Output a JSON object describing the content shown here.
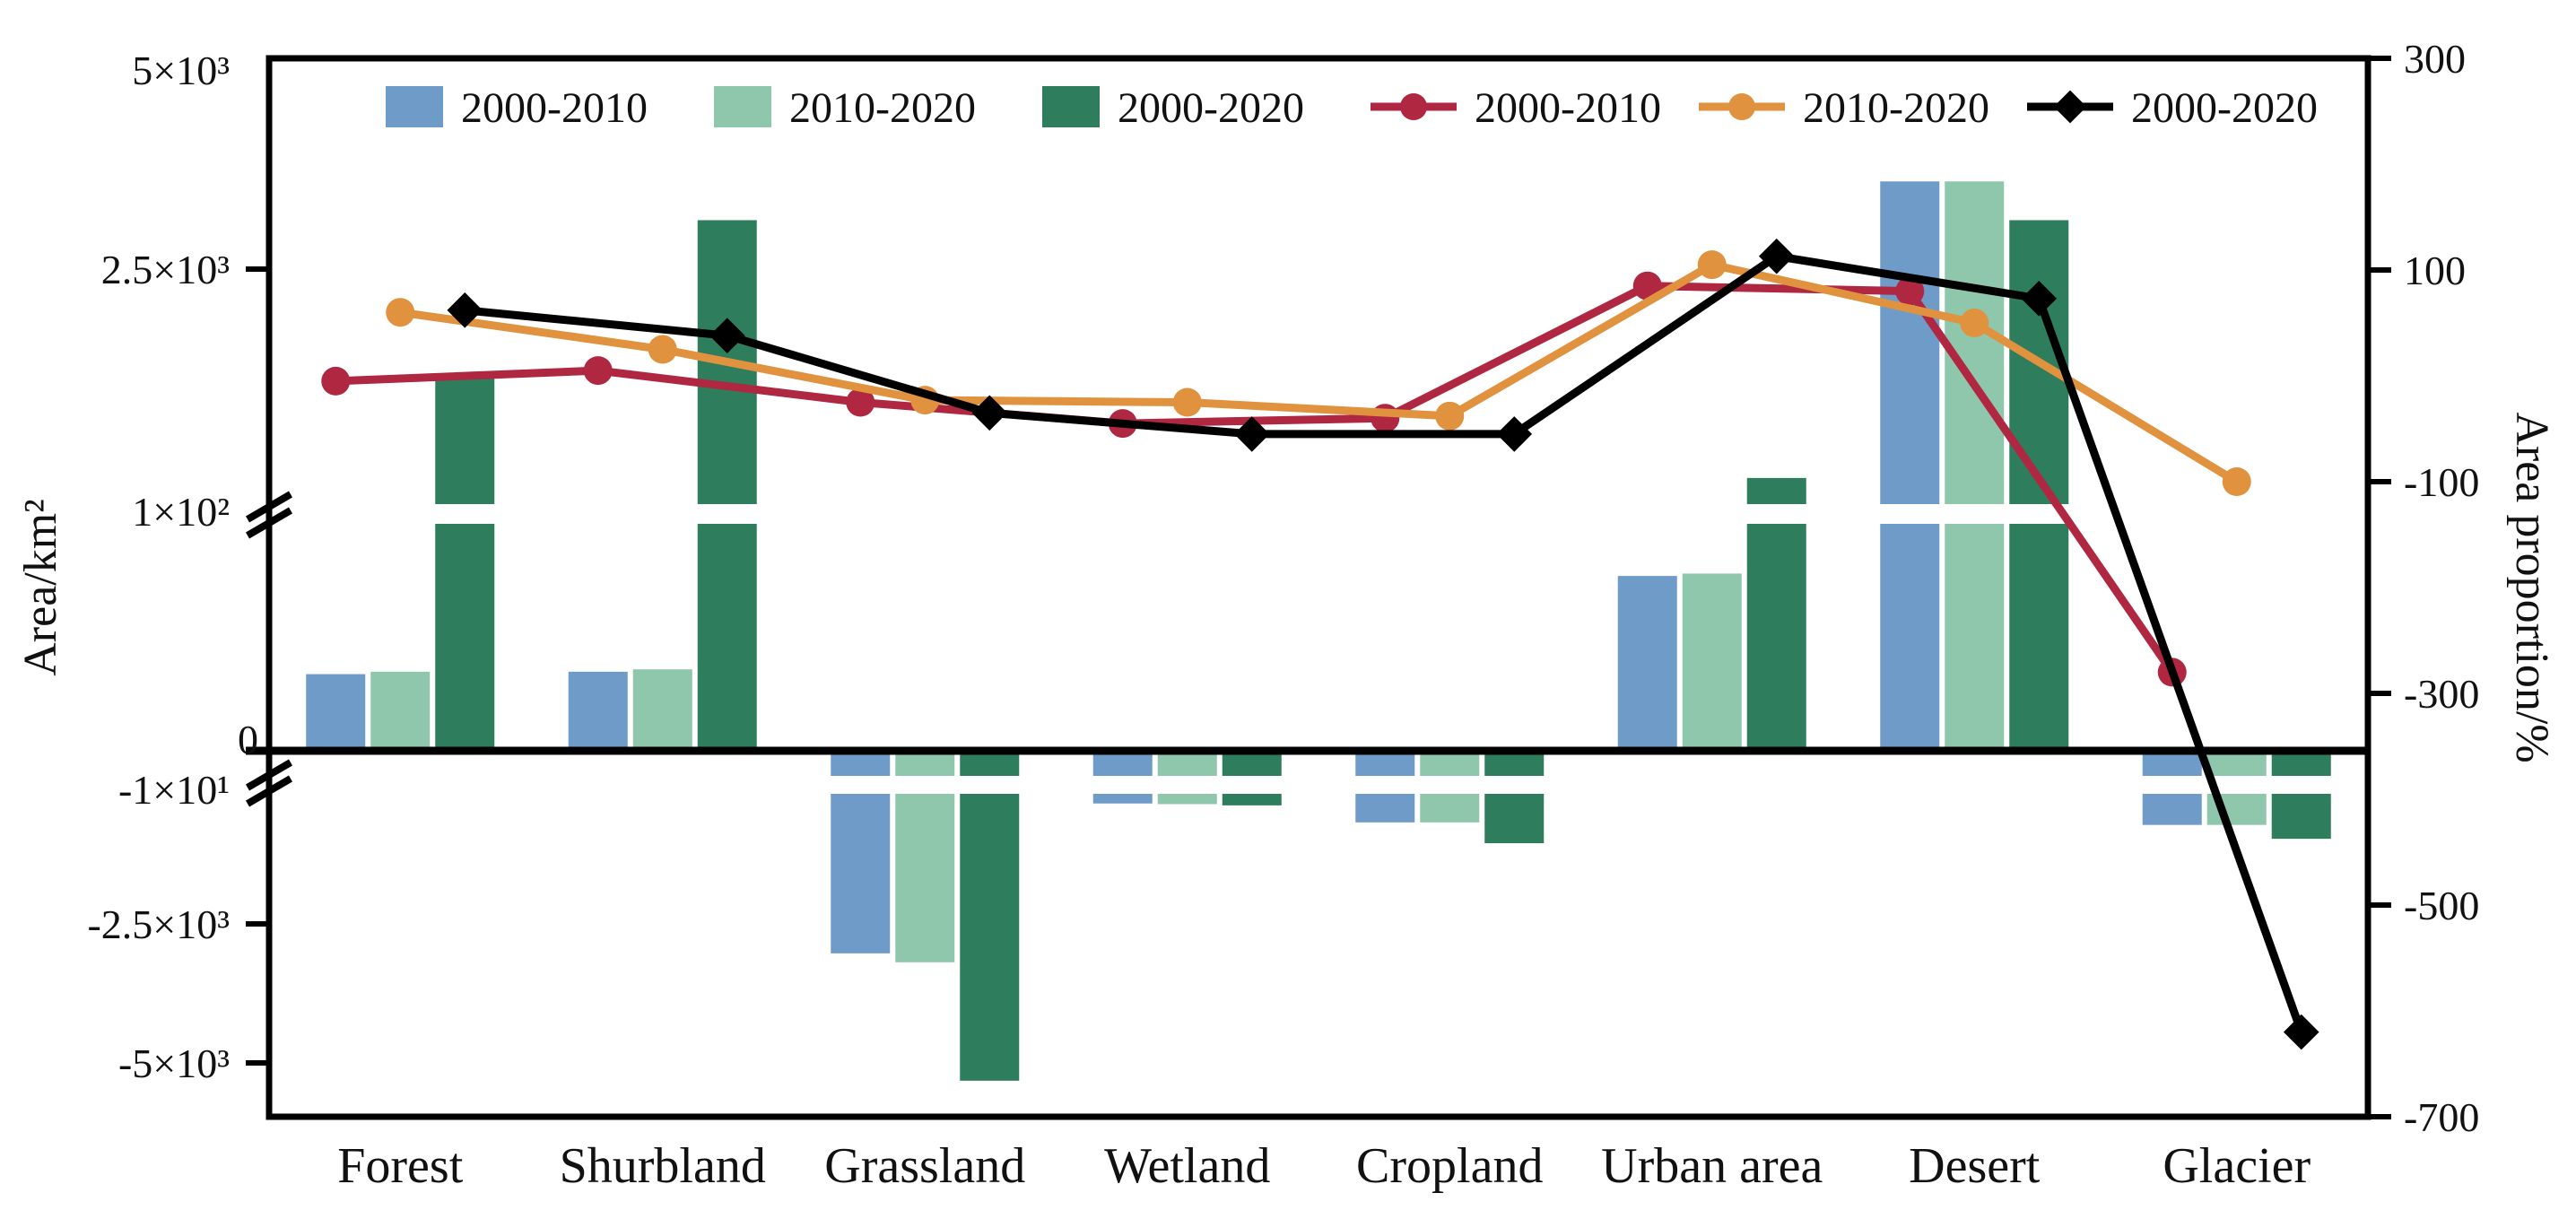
{
  "chart_data": {
    "type": "combo-bar-line",
    "title": "",
    "categories": [
      "Forest",
      "Shurbland",
      "Grassland",
      "Wetland",
      "Cropland",
      "Urban area",
      "Desert",
      "Glacier"
    ],
    "bar_series": [
      {
        "name": "2000-2010",
        "color": "#6f9bc8",
        "values": [
          32,
          33,
          -3030,
          -590,
          -890,
          73,
          3540,
          -930
        ]
      },
      {
        "name": "2010-2020",
        "color": "#8fc7ad",
        "values": [
          33,
          34,
          -3190,
          -600,
          -890,
          74,
          3540,
          -930
        ]
      },
      {
        "name": "2000-2020",
        "color": "#2e7d5c",
        "values": [
          1430,
          3080,
          -5320,
          -620,
          -1220,
          430,
          3080,
          -1150
        ]
      }
    ],
    "line_series": [
      {
        "name": "2000-2010",
        "color": "#b02742",
        "marker": "circle",
        "values": [
          -5,
          5,
          -25,
          -45,
          -40,
          85,
          80,
          -280
        ]
      },
      {
        "name": "2010-2020",
        "color": "#e0923f",
        "marker": "circle",
        "values": [
          60,
          25,
          -23,
          -25,
          -38,
          105,
          50,
          -100
        ]
      },
      {
        "name": "2000-2020",
        "color": "#000000",
        "marker": "diamond",
        "values": [
          62,
          38,
          -35,
          -55,
          -55,
          113,
          73,
          -620
        ]
      }
    ],
    "left_axis": {
      "label": "Area/km²",
      "tick_labels": [
        "5×10³",
        "2.5×10³",
        "1×10²",
        "0",
        "-1×10¹",
        "-2.5×10³",
        "-5×10³"
      ],
      "tick_values": [
        5000,
        2500,
        100,
        0,
        -10,
        -2500,
        -5000
      ],
      "has_breaks": true
    },
    "right_axis": {
      "label": "Area proportion/%",
      "tick_labels": [
        "300",
        "100",
        "-100",
        "-300",
        "-500",
        "-700"
      ],
      "tick_values": [
        300,
        100,
        -100,
        -300,
        -500,
        -700
      ],
      "range": [
        300,
        -700
      ]
    },
    "legend": {
      "bar_items": [
        "2000-2010",
        "2010-2020",
        "2000-2020"
      ],
      "line_items": [
        "2000-2010",
        "2010-2020",
        "2000-2020"
      ]
    }
  }
}
